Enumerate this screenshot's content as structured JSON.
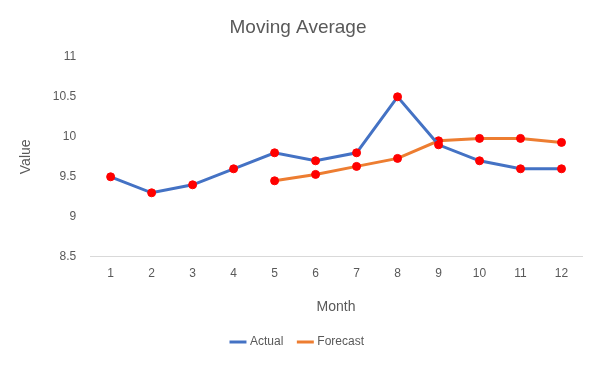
{
  "chart_data": {
    "type": "line",
    "title": "Moving Average",
    "x_label": "Month",
    "y_label": "Value",
    "categories": [
      "1",
      "2",
      "3",
      "4",
      "5",
      "6",
      "7",
      "8",
      "9",
      "10",
      "11",
      "12"
    ],
    "series": [
      {
        "name": "Actual",
        "color": "#4472c4",
        "marker": "circle",
        "values": [
          9.5,
          9.3,
          9.4,
          9.6,
          9.8,
          9.7,
          9.8,
          10.5,
          9.9,
          9.7,
          9.6,
          9.6
        ]
      },
      {
        "name": "Forecast",
        "color": "#ed7d31",
        "marker": "circle",
        "values": [
          null,
          null,
          null,
          null,
          9.45,
          9.53,
          9.63,
          9.73,
          9.95,
          9.98,
          9.98,
          9.93
        ]
      }
    ],
    "ylim": [
      8.5,
      11
    ],
    "yticks": [
      8.5,
      9,
      9.5,
      10,
      10.5,
      11
    ],
    "grid": false,
    "legend": "bottom"
  }
}
